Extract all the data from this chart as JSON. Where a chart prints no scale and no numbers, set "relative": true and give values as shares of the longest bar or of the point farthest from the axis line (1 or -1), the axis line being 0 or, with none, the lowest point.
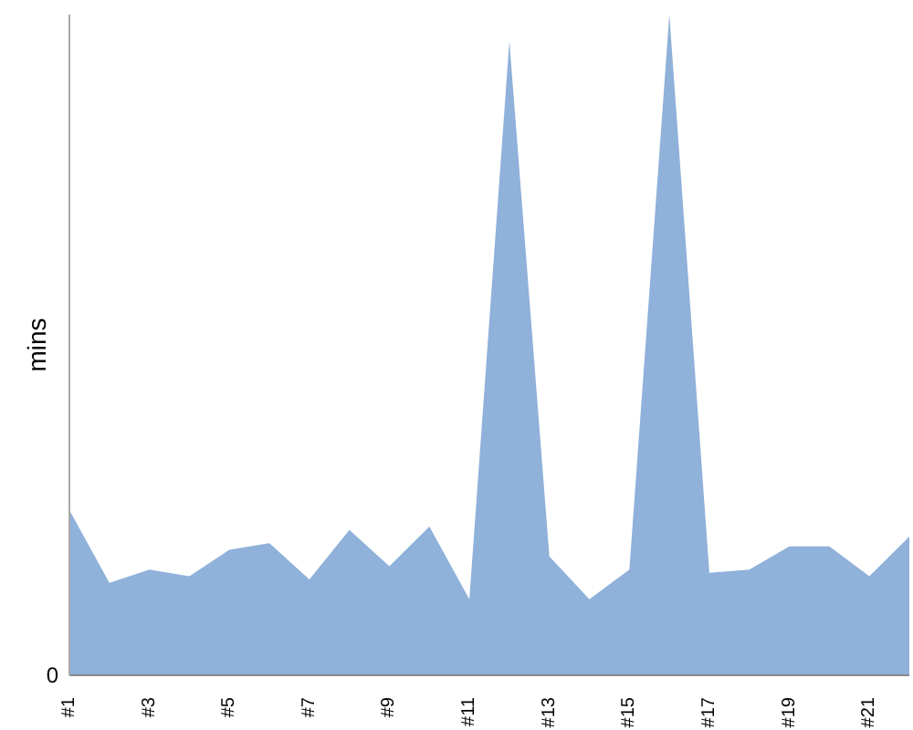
{
  "chart_data": {
    "type": "area",
    "ylabel": "mins",
    "relative": true,
    "color": "#8fb1da",
    "annotations": [
      "0"
    ],
    "categories": [
      "#1",
      null,
      "#3",
      null,
      "#5",
      null,
      "#7",
      null,
      "#9",
      null,
      "#11",
      null,
      "#13",
      null,
      "#15",
      null,
      "#17",
      null,
      "#19",
      null,
      "#21",
      null
    ],
    "values": [
      0.25,
      0.14,
      0.16,
      0.15,
      0.19,
      0.2,
      0.145,
      0.22,
      0.165,
      0.225,
      0.115,
      0.96,
      0.18,
      0.115,
      0.16,
      1,
      0.155,
      0.16,
      0.195,
      0.195,
      0.15,
      0.21
    ]
  }
}
